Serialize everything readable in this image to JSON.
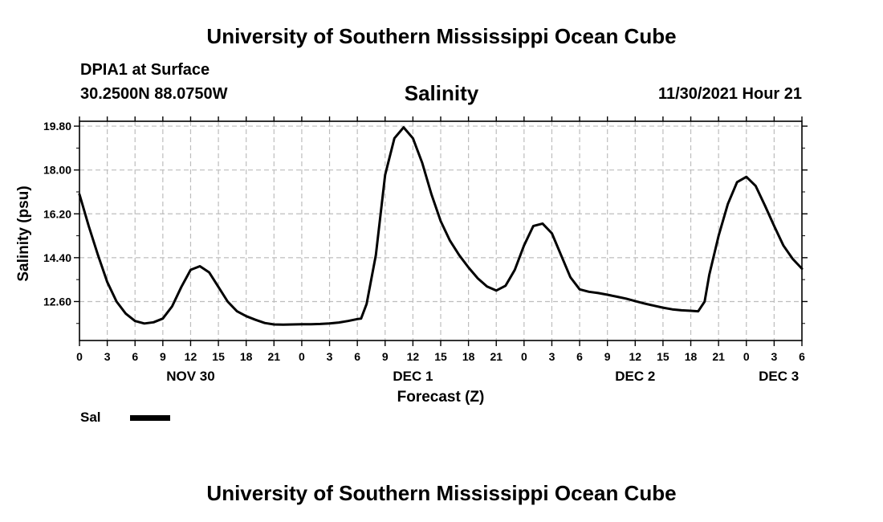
{
  "header": {
    "org_title": "University of Southern Mississippi Ocean Cube",
    "station": "DPIA1 at Surface",
    "coords": "30.2500N  88.0750W",
    "timestamp": "11/30/2021 Hour 21",
    "footer_title": "University of Southern Mississippi Ocean Cube"
  },
  "chart_data": {
    "type": "line",
    "title": "Salinity",
    "xlabel": "Forecast (Z)",
    "ylabel": "Salinity (psu)",
    "xlim": [
      0,
      78
    ],
    "ylim": [
      11.0,
      20.0
    ],
    "yticks": [
      "12.60",
      "14.40",
      "16.20",
      "18.00",
      "19.80"
    ],
    "ytick_values": [
      12.6,
      14.4,
      16.2,
      18.0,
      19.8
    ],
    "xtick_hours": [
      0,
      3,
      6,
      9,
      12,
      15,
      18,
      21,
      24,
      27,
      30,
      33,
      36,
      39,
      42,
      45,
      48,
      51,
      54,
      57,
      60,
      63,
      66,
      69,
      72,
      75,
      78
    ],
    "xtick_labels": [
      "0",
      "3",
      "6",
      "9",
      "12",
      "15",
      "18",
      "21",
      "0",
      "3",
      "6",
      "9",
      "12",
      "15",
      "18",
      "21",
      "0",
      "3",
      "6",
      "9",
      "12",
      "15",
      "18",
      "21",
      "0",
      "3",
      "6"
    ],
    "date_labels": [
      {
        "label": "NOV 30",
        "hour": 12
      },
      {
        "label": "DEC 1",
        "hour": 36
      },
      {
        "label": "DEC 2",
        "hour": 60
      },
      {
        "label": "DEC 3",
        "hour": 75.5
      }
    ],
    "grid": true,
    "legend": [
      {
        "name": "Sal",
        "color": "#000000"
      }
    ],
    "series": [
      {
        "name": "Sal",
        "color": "#000000",
        "x": [
          0,
          1,
          2,
          3,
          4,
          5,
          6,
          7,
          8,
          9,
          10,
          11,
          12,
          13,
          14,
          15,
          16,
          17,
          18,
          19,
          20,
          21,
          22,
          23,
          24,
          25,
          26,
          27,
          28,
          29,
          30,
          30.4,
          31,
          32,
          33,
          34,
          35,
          36,
          37,
          38,
          39,
          40,
          41,
          42,
          43,
          44,
          45,
          46,
          47,
          48,
          49,
          50,
          51,
          52,
          53,
          54,
          55,
          56,
          57,
          58,
          59,
          60,
          61,
          62,
          63,
          64,
          65,
          66,
          66.8,
          67.5,
          68,
          69,
          70,
          71,
          72,
          73,
          74,
          75,
          76,
          77,
          78
        ],
        "y": [
          17.0,
          15.7,
          14.5,
          13.4,
          12.6,
          12.1,
          11.8,
          11.7,
          11.75,
          11.9,
          12.4,
          13.2,
          13.9,
          14.05,
          13.8,
          13.2,
          12.6,
          12.2,
          12.0,
          11.85,
          11.72,
          11.66,
          11.65,
          11.66,
          11.67,
          11.67,
          11.68,
          11.7,
          11.74,
          11.8,
          11.88,
          11.9,
          12.5,
          14.5,
          17.8,
          19.3,
          19.75,
          19.3,
          18.3,
          17.0,
          15.9,
          15.1,
          14.5,
          14.0,
          13.55,
          13.22,
          13.05,
          13.25,
          13.9,
          14.9,
          15.7,
          15.8,
          15.4,
          14.5,
          13.6,
          13.1,
          13.0,
          12.95,
          12.88,
          12.8,
          12.72,
          12.62,
          12.52,
          12.43,
          12.35,
          12.28,
          12.24,
          12.22,
          12.2,
          12.6,
          13.7,
          15.3,
          16.6,
          17.5,
          17.72,
          17.35,
          16.55,
          15.7,
          14.9,
          14.35,
          13.95
        ]
      }
    ]
  }
}
